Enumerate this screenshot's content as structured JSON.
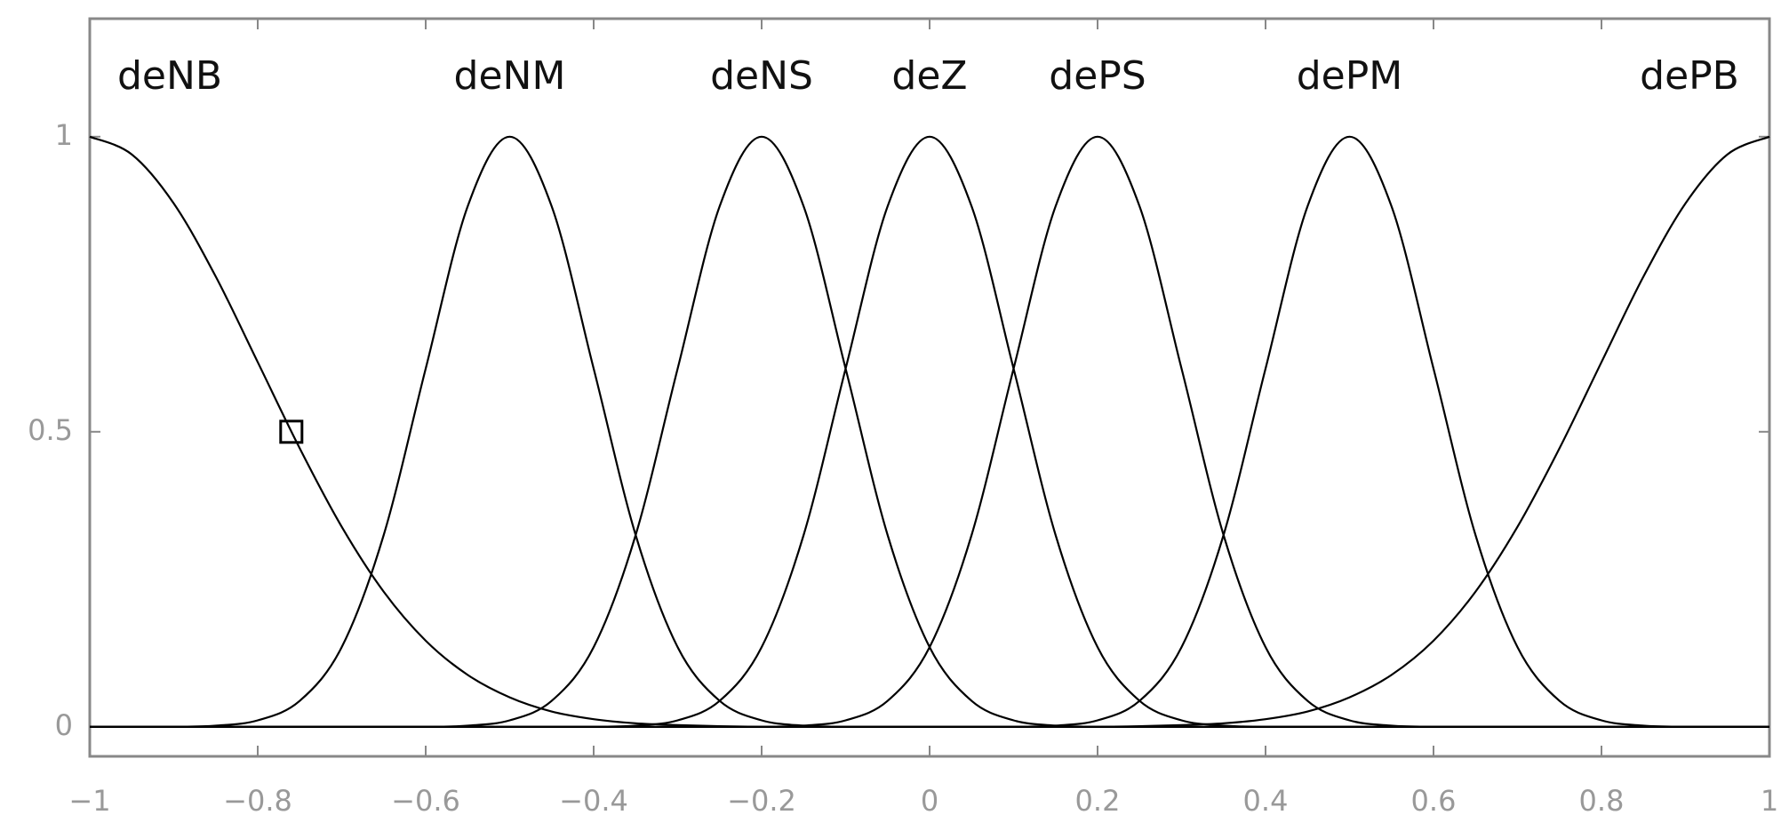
{
  "chart_data": {
    "type": "line",
    "x": [
      -1,
      -0.95,
      -0.9,
      -0.85,
      -0.8,
      -0.75,
      -0.7,
      -0.65,
      -0.6,
      -0.55,
      -0.5,
      -0.45,
      -0.4,
      -0.35,
      -0.3,
      -0.25,
      -0.2,
      -0.15,
      -0.1,
      -0.05,
      0,
      0.05,
      0.1,
      0.15,
      0.2,
      0.25,
      0.3,
      0.35,
      0.4,
      0.45,
      0.5,
      0.55,
      0.6,
      0.65,
      0.7,
      0.75,
      0.8,
      0.85,
      0.9,
      0.95,
      1
    ],
    "series": [
      {
        "name": "deNB",
        "color": "#000000",
        "values": [
          1,
          0.97,
          0.887,
          0.763,
          0.618,
          0.472,
          0.339,
          0.229,
          0.146,
          0.088,
          0.05,
          0.026,
          0.013,
          0.006,
          0.003,
          0.001,
          0,
          0,
          0,
          0,
          0,
          0,
          0,
          0,
          0,
          0,
          0,
          0,
          0,
          0,
          0,
          0,
          0,
          0,
          0,
          0,
          0,
          0,
          0,
          0,
          0
        ]
      },
      {
        "name": "deNM",
        "color": "#000000",
        "values": [
          0,
          0,
          0,
          0.002,
          0.011,
          0.044,
          0.135,
          0.325,
          0.607,
          0.882,
          1,
          0.882,
          0.607,
          0.325,
          0.135,
          0.044,
          0.011,
          0.002,
          0,
          0,
          0,
          0,
          0,
          0,
          0,
          0,
          0,
          0,
          0,
          0,
          0,
          0,
          0,
          0,
          0,
          0,
          0,
          0,
          0,
          0,
          0
        ]
      },
      {
        "name": "deNS",
        "color": "#000000",
        "values": [
          0,
          0,
          0,
          0,
          0,
          0,
          0,
          0,
          0,
          0.002,
          0.011,
          0.044,
          0.135,
          0.325,
          0.607,
          0.882,
          1,
          0.882,
          0.607,
          0.325,
          0.135,
          0.044,
          0.011,
          0.002,
          0,
          0,
          0,
          0,
          0,
          0,
          0,
          0,
          0,
          0,
          0,
          0,
          0,
          0,
          0,
          0,
          0
        ]
      },
      {
        "name": "deZ",
        "color": "#000000",
        "values": [
          0,
          0,
          0,
          0,
          0,
          0,
          0,
          0,
          0,
          0,
          0,
          0,
          0,
          0.002,
          0.011,
          0.044,
          0.135,
          0.325,
          0.607,
          0.882,
          1,
          0.882,
          0.607,
          0.325,
          0.135,
          0.044,
          0.011,
          0.002,
          0,
          0,
          0,
          0,
          0,
          0,
          0,
          0,
          0,
          0,
          0,
          0,
          0
        ]
      },
      {
        "name": "dePS",
        "color": "#000000",
        "values": [
          0,
          0,
          0,
          0,
          0,
          0,
          0,
          0,
          0,
          0,
          0,
          0,
          0,
          0,
          0,
          0,
          0,
          0.002,
          0.011,
          0.044,
          0.135,
          0.325,
          0.607,
          0.882,
          1,
          0.882,
          0.607,
          0.325,
          0.135,
          0.044,
          0.011,
          0.002,
          0,
          0,
          0,
          0,
          0,
          0,
          0,
          0,
          0
        ]
      },
      {
        "name": "dePM",
        "color": "#000000",
        "values": [
          0,
          0,
          0,
          0,
          0,
          0,
          0,
          0,
          0,
          0,
          0,
          0,
          0,
          0,
          0,
          0,
          0,
          0,
          0,
          0,
          0,
          0,
          0,
          0.002,
          0.011,
          0.044,
          0.135,
          0.325,
          0.607,
          0.882,
          1,
          0.882,
          0.607,
          0.325,
          0.135,
          0.044,
          0.011,
          0.002,
          0,
          0,
          0
        ]
      },
      {
        "name": "dePB",
        "color": "#000000",
        "values": [
          0,
          0,
          0,
          0,
          0,
          0,
          0,
          0,
          0,
          0,
          0,
          0,
          0,
          0,
          0,
          0,
          0,
          0,
          0,
          0,
          0,
          0,
          0,
          0,
          0,
          0.001,
          0.003,
          0.006,
          0.013,
          0.026,
          0.05,
          0.088,
          0.146,
          0.229,
          0.339,
          0.472,
          0.618,
          0.763,
          0.887,
          0.97,
          1
        ]
      }
    ],
    "marker": {
      "x": -0.76,
      "y": 0.5
    },
    "xlim": [
      -1,
      1
    ],
    "xticks": [
      {
        "value": -1,
        "label": "−1"
      },
      {
        "value": -0.8,
        "label": "−0.8"
      },
      {
        "value": -0.6,
        "label": "−0.6"
      },
      {
        "value": -0.4,
        "label": "−0.4"
      },
      {
        "value": -0.2,
        "label": "−0.2"
      },
      0,
      0.2,
      0.4,
      0.6,
      0.8,
      1
    ],
    "ylim": [
      -0.05,
      1.2
    ],
    "yticks": [
      0,
      0.5,
      1
    ]
  }
}
